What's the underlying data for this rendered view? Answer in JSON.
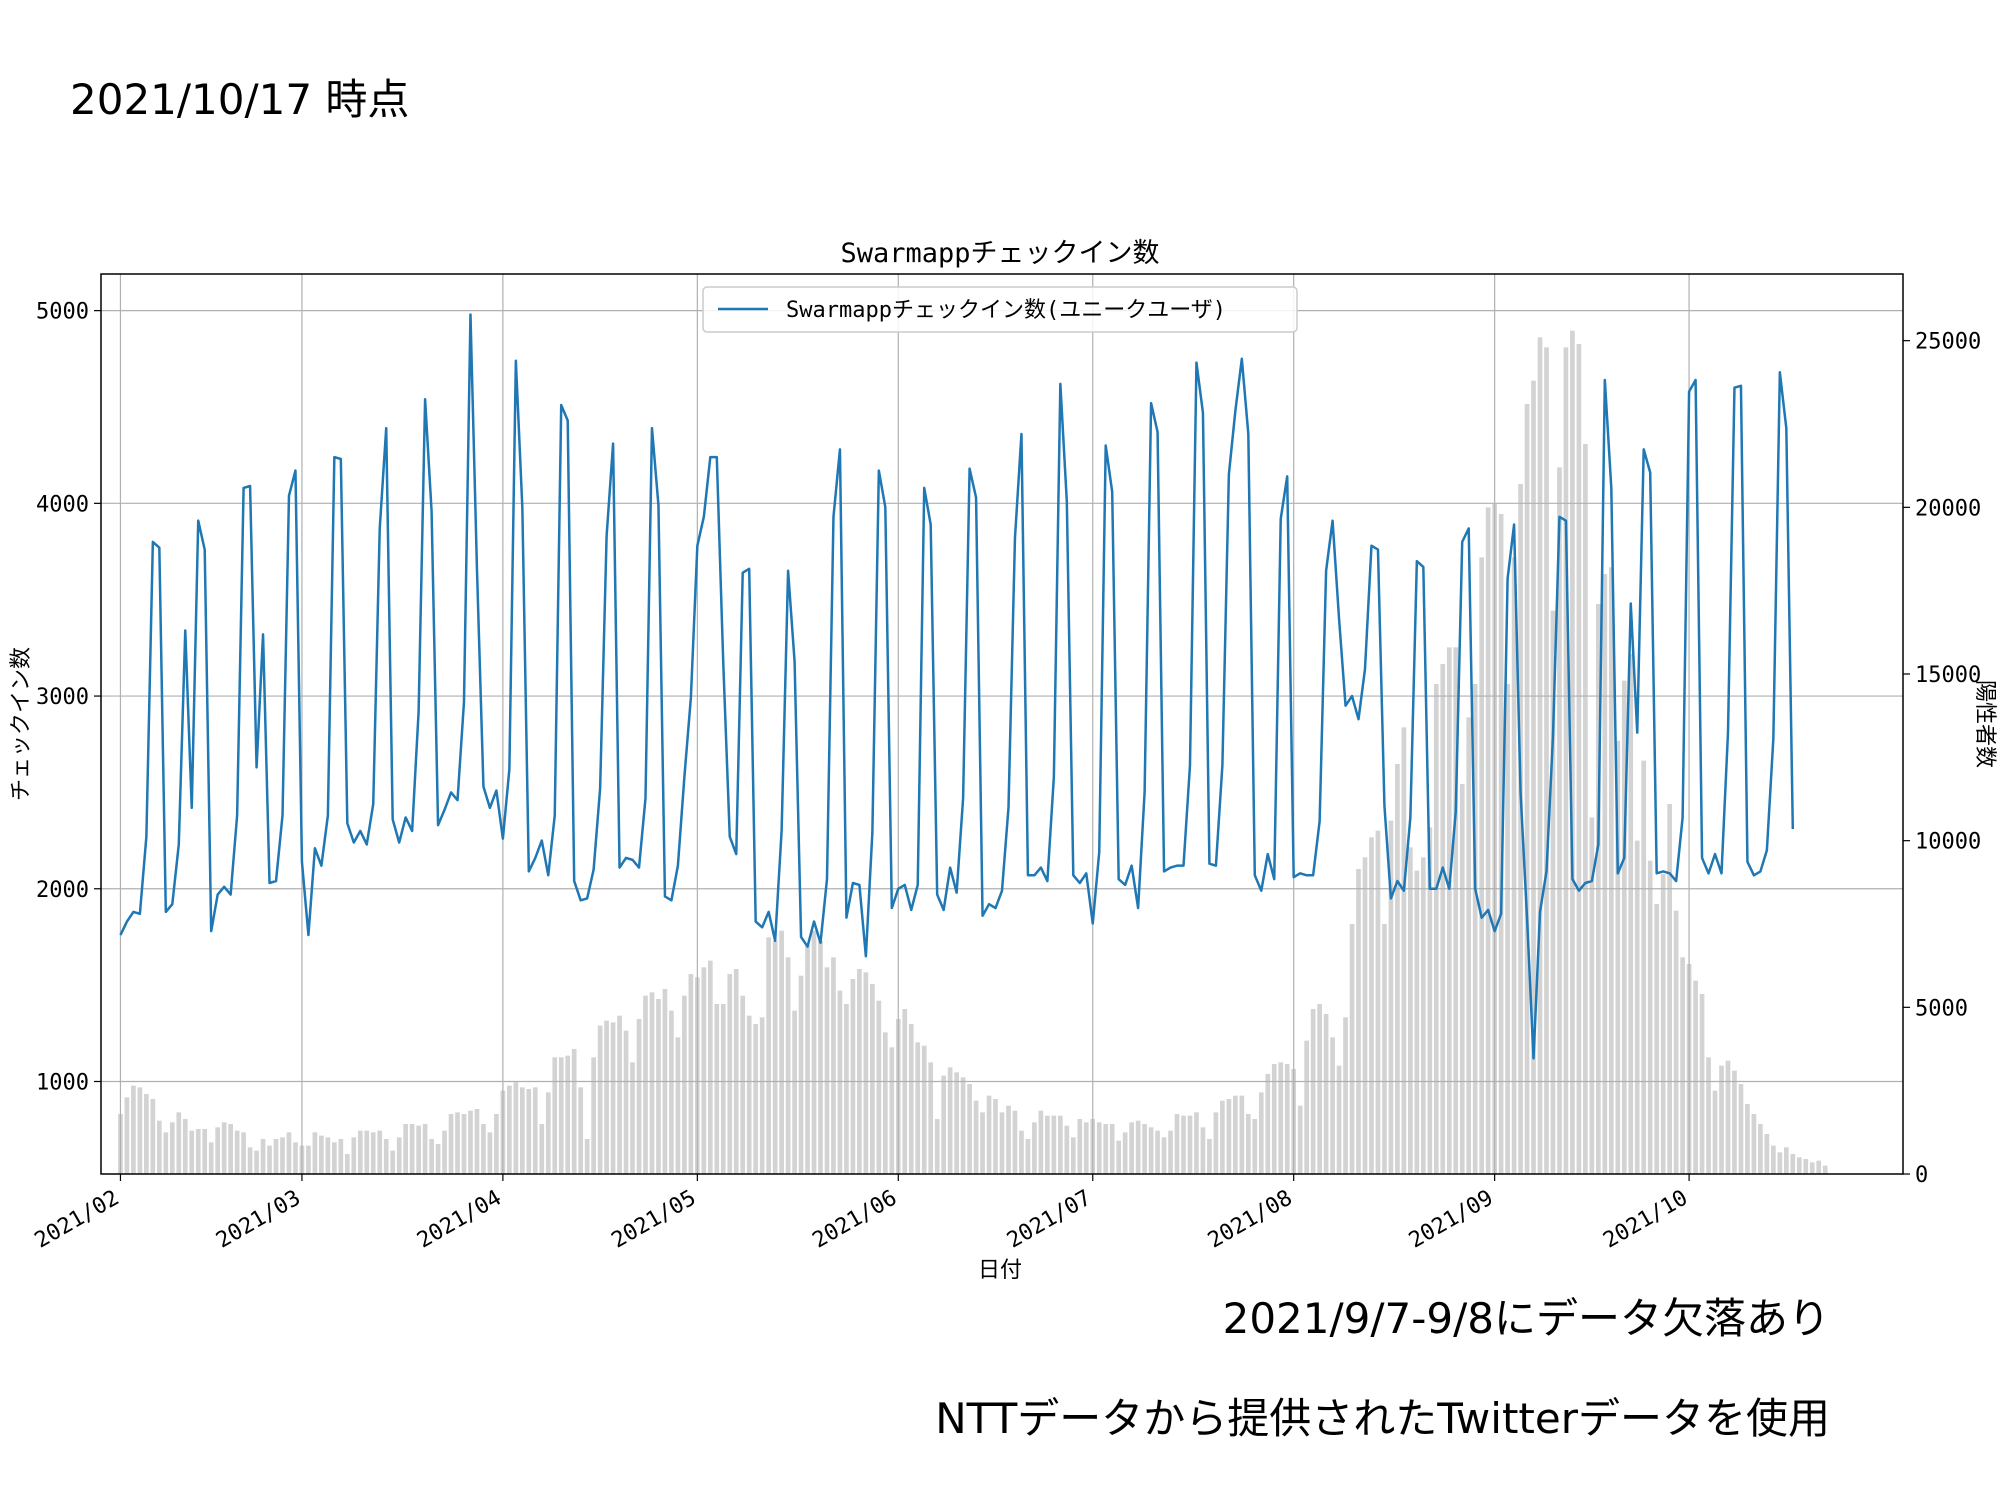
{
  "slide": {
    "title": "2021/10/17 時点",
    "note_data_gap": "2021/9/7-9/8にデータ欠落あり",
    "note_source": "NTTデータから提供されたTwitterデータを使用"
  },
  "chart_data": {
    "type": "line",
    "title": "Swarmappチェックイン数",
    "xlabel": "日付",
    "ylabel": "チェックイン数",
    "y2label": "陽性者数",
    "x_start": "2021-02-01",
    "x_end": "2021-10-17",
    "xlim": [
      "2021-01-29",
      "2021-11-03"
    ],
    "ylim": [
      520,
      5190
    ],
    "y2lim": [
      0,
      27000
    ],
    "xticks": [
      "2021/02",
      "2021/03",
      "2021/04",
      "2021/05",
      "2021/06",
      "2021/07",
      "2021/08",
      "2021/09",
      "2021/10"
    ],
    "yticks": [
      1000,
      2000,
      3000,
      4000,
      5000
    ],
    "y2ticks": [
      0,
      5000,
      10000,
      15000,
      20000,
      25000
    ],
    "grid": true,
    "legend": "upper center",
    "colors": {
      "line": "#1f77b4",
      "bars": "#d3d3d3",
      "grid": "#b0b0b0"
    },
    "series": [
      {
        "name": "Swarmappチェックイン数(ユニークユーザ)",
        "type": "line",
        "axis": "left",
        "values": [
          1760,
          1830,
          1880,
          1870,
          2270,
          3800,
          3770,
          1880,
          1920,
          2230,
          3340,
          2420,
          3910,
          3760,
          1780,
          1970,
          2010,
          1970,
          2380,
          4080,
          4090,
          2630,
          3320,
          2030,
          2040,
          2380,
          4040,
          4170,
          2140,
          1760,
          2210,
          2120,
          2380,
          4240,
          4230,
          2340,
          2240,
          2300,
          2230,
          2440,
          3870,
          4390,
          2360,
          2240,
          2370,
          2300,
          2920,
          4540,
          3960,
          2330,
          2410,
          2500,
          2460,
          2970,
          4980,
          3660,
          2530,
          2420,
          2510,
          2260,
          2620,
          4740,
          3980,
          2090,
          2160,
          2250,
          2070,
          2380,
          4510,
          4430,
          2040,
          1940,
          1950,
          2100,
          2520,
          3830,
          4310,
          2110,
          2160,
          2150,
          2110,
          2470,
          4390,
          3990,
          1960,
          1940,
          2120,
          2580,
          2990,
          3780,
          3930,
          4240,
          4240,
          3170,
          2270,
          2180,
          3640,
          3660,
          1830,
          1800,
          1880,
          1730,
          2300,
          3650,
          3180,
          1750,
          1700,
          1830,
          1720,
          2050,
          3930,
          4280,
          1850,
          2030,
          2020,
          1650,
          2290,
          4170,
          3980,
          1900,
          2000,
          2020,
          1890,
          2020,
          4080,
          3890,
          1970,
          1890,
          2110,
          1980,
          2470,
          4180,
          4030,
          1860,
          1920,
          1900,
          1990,
          2420,
          3820,
          4360,
          2070,
          2070,
          2110,
          2040,
          2580,
          4620,
          4010,
          2070,
          2030,
          2080,
          1820,
          2190,
          4300,
          4060,
          2050,
          2020,
          2120,
          1900,
          2500,
          4520,
          4370,
          2090,
          2110,
          2120,
          2120,
          2640,
          4730,
          4470,
          2130,
          2120,
          2640,
          4150,
          4480,
          4750,
          4360,
          2070,
          1990,
          2180,
          2050,
          3920,
          4140,
          2060,
          2080,
          2070,
          2070,
          2350,
          3650,
          3910,
          3400,
          2950,
          3000,
          2880,
          3140,
          3780,
          3760,
          2430,
          1950,
          2040,
          1990,
          2370,
          3700,
          3670,
          2000,
          2000,
          2110,
          2000,
          2400,
          3800,
          3870,
          2000,
          1850,
          1890,
          1780,
          1870,
          3610,
          3890,
          2500,
          1850,
          1120,
          1880,
          2090,
          2790,
          3930,
          3910,
          2050,
          1990,
          2030,
          2040,
          2230,
          4640,
          4080,
          2080,
          2160,
          3480,
          2810,
          4280,
          4160,
          2080,
          2090,
          2080,
          2040,
          2370,
          4580,
          4640,
          2160,
          2080,
          2180,
          2080,
          2810,
          4600,
          4610,
          2140,
          2070,
          2090,
          2200,
          2780,
          4680,
          4390,
          2310
        ]
      },
      {
        "name": "陽性者数",
        "type": "bar",
        "axis": "right",
        "values": [
          1800,
          2300,
          2650,
          2600,
          2400,
          2250,
          1600,
          1250,
          1550,
          1850,
          1650,
          1300,
          1350,
          1350,
          950,
          1400,
          1550,
          1500,
          1300,
          1250,
          800,
          700,
          1050,
          850,
          1050,
          1100,
          1250,
          950,
          850,
          850,
          1250,
          1150,
          1100,
          950,
          1050,
          600,
          1100,
          1300,
          1300,
          1250,
          1300,
          1050,
          700,
          1100,
          1500,
          1500,
          1450,
          1500,
          1050,
          900,
          1300,
          1800,
          1850,
          1800,
          1900,
          1950,
          1500,
          1250,
          1800,
          2500,
          2650,
          2750,
          2600,
          2550,
          2600,
          1500,
          2450,
          3500,
          3500,
          3550,
          3750,
          2600,
          1050,
          3500,
          4450,
          4600,
          4550,
          4750,
          4300,
          3350,
          4650,
          5350,
          5450,
          5250,
          5550,
          4900,
          4100,
          5350,
          6000,
          5900,
          6200,
          6400,
          5100,
          5100,
          6000,
          6150,
          5350,
          4750,
          4500,
          4700,
          7100,
          7000,
          7300,
          6500,
          4900,
          5950,
          6850,
          7300,
          7000,
          6200,
          6500,
          5500,
          5100,
          5850,
          6150,
          6050,
          5700,
          5200,
          4250,
          3800,
          4650,
          4950,
          4500,
          3950,
          3850,
          3350,
          1650,
          2950,
          3200,
          3050,
          2900,
          2700,
          2200,
          1850,
          2350,
          2250,
          1850,
          2050,
          1900,
          1300,
          1050,
          1550,
          1900,
          1750,
          1750,
          1750,
          1450,
          1100,
          1650,
          1550,
          1650,
          1550,
          1500,
          1500,
          1000,
          1250,
          1550,
          1600,
          1500,
          1400,
          1300,
          1100,
          1300,
          1800,
          1750,
          1750,
          1850,
          1400,
          1050,
          1850,
          2200,
          2250,
          2350,
          2350,
          1800,
          1650,
          2450,
          3000,
          3300,
          3350,
          3300,
          3150,
          2050,
          4000,
          4950,
          5100,
          4800,
          4100,
          3250,
          4700,
          7500,
          9150,
          9500,
          10100,
          10300,
          7500,
          10600,
          12300,
          13400,
          9800,
          9100,
          9500,
          10400,
          14700,
          15300,
          15800,
          15800,
          11700,
          13700,
          14700,
          18500,
          20000,
          20100,
          19800,
          14700,
          18500,
          20700,
          23100,
          23800,
          25100,
          24800,
          16900,
          21200,
          24800,
          25300,
          24900,
          21900,
          10700,
          17100,
          18000,
          18200,
          13000,
          14800,
          15600,
          10000,
          12400,
          9400,
          8100,
          9000,
          11100,
          7900,
          6500,
          6300,
          5800,
          5400,
          3500,
          2500,
          3250,
          3400,
          3100,
          2700,
          2100,
          1800,
          1500,
          1200,
          850,
          650,
          800,
          600,
          500,
          450,
          350,
          400,
          250
        ]
      }
    ]
  }
}
